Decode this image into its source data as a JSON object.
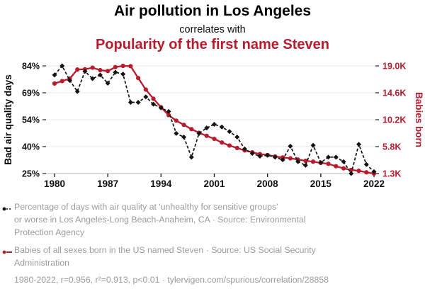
{
  "header": {
    "title1": "Air pollution in Los Angeles",
    "connector": "correlates with",
    "title2": "Popularity of the first name Steven"
  },
  "colors": {
    "series_air": "#131313",
    "series_steven": "#b81c2c",
    "grid": "#e8e8e8",
    "axis_line": "#c4c4c4",
    "tick_mark": "#222222",
    "x_label": "#111111",
    "footer_text": "#9b9b9b"
  },
  "chart_data": {
    "type": "line",
    "x": [
      1980,
      1981,
      1982,
      1983,
      1984,
      1985,
      1986,
      1987,
      1988,
      1989,
      1990,
      1991,
      1992,
      1993,
      1994,
      1995,
      1996,
      1997,
      1998,
      1999,
      2000,
      2001,
      2002,
      2003,
      2004,
      2005,
      2006,
      2007,
      2008,
      2009,
      2010,
      2011,
      2012,
      2013,
      2014,
      2015,
      2016,
      2017,
      2018,
      2019,
      2020,
      2021,
      2022
    ],
    "x_ticks": [
      1980,
      1987,
      1994,
      2001,
      2008,
      2015,
      2022
    ],
    "left_axis": {
      "label": "Bad air quality days",
      "ticks": [
        "84%",
        "69%",
        "54%",
        "40%",
        "25%"
      ],
      "range": [
        25,
        84
      ]
    },
    "right_axis": {
      "label": "Babies born",
      "ticks": [
        "19.0K",
        "14.6K",
        "10.2K",
        "5.8K",
        "1.3K"
      ],
      "range": [
        1300,
        19000
      ]
    },
    "series": [
      {
        "name": "Percentage of days with air quality at 'unhealthy for sensitive groups' or worse in Los Angeles-Long Beach-Anaheim, CA",
        "axis": "left",
        "line": "dashed",
        "marker": "diamond",
        "color": "#131313",
        "values": [
          79,
          84,
          76,
          70,
          81,
          77,
          79,
          74.5,
          80.5,
          79.5,
          64,
          64,
          67,
          63,
          61,
          59,
          47,
          45,
          34,
          47,
          50,
          52,
          50.5,
          48,
          45,
          38.5,
          36,
          34.5,
          35,
          34,
          32.5,
          40,
          31.5,
          29.5,
          40.5,
          31,
          34,
          34,
          31.5,
          25,
          41,
          30,
          26
        ]
      },
      {
        "name": "Babies of all sexes born in the US named Steven",
        "axis": "right",
        "line": "solid",
        "marker": "circle",
        "color": "#b81c2c",
        "values": [
          16100,
          16500,
          16900,
          18400,
          18450,
          18700,
          18300,
          18150,
          18800,
          19000,
          18950,
          17000,
          15100,
          13600,
          12200,
          10900,
          10000,
          9300,
          8600,
          8000,
          7500,
          7000,
          6400,
          5900,
          5500,
          5100,
          4800,
          4500,
          4350,
          4100,
          3950,
          3800,
          3600,
          3400,
          3250,
          3050,
          2900,
          2500,
          2150,
          1900,
          1750,
          1500,
          1300
        ]
      }
    ]
  },
  "legend": {
    "entries": [
      {
        "marker": "black-dashed-dot",
        "lines": [
          "Percentage of days with air quality at 'unhealthy for sensitive groups'",
          "or worse in Los Angeles-Long Beach-Anaheim, CA · Source: Environmental",
          "Protection Agency"
        ]
      },
      {
        "marker": "red-solid-dot",
        "lines": [
          "Babies of all sexes born in the US named Steven · Source: US Social Security",
          "Administration"
        ]
      }
    ],
    "stats": "1980-2022, r=0.956, r²=0.913, p<0.01 · tylervigen.com/spurious/correlation/28858"
  }
}
